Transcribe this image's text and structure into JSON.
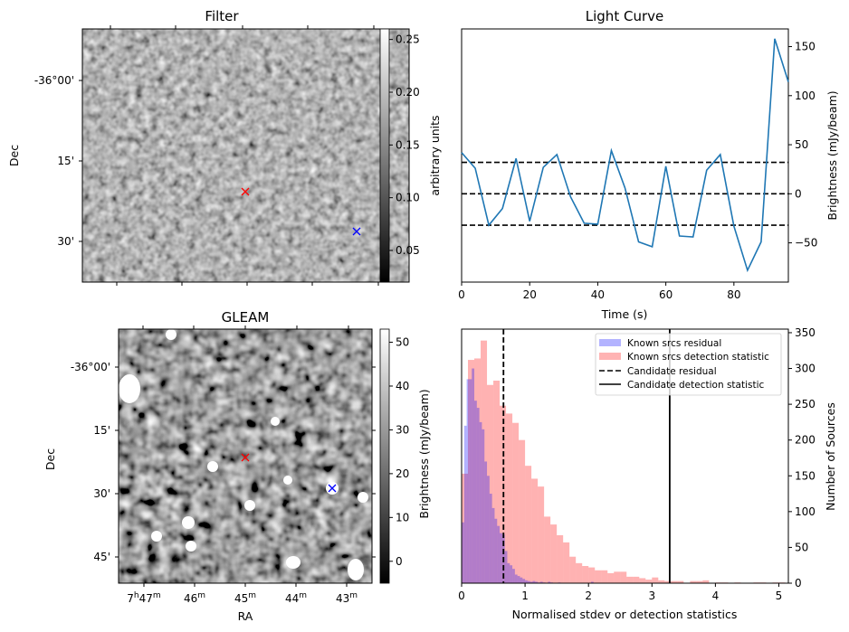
{
  "figure": {
    "colors": {
      "line": "#1f77b4",
      "red_cross": "#ff0000",
      "blue_cross": "#0000ff",
      "hist_residual": "#b3b3ff",
      "hist_detection": "#ffb3b3",
      "overlap": "#c878b0"
    }
  },
  "chart_data": [
    {
      "type": "heatmap",
      "title": "Filter",
      "xlabel": "",
      "ylabel": "Dec",
      "y_tick_labels": [
        "-36°00'",
        "15'",
        "30'"
      ],
      "colorbar": {
        "label": "arbitrary units",
        "ticks": [
          "0.05",
          "0.10",
          "0.15",
          "0.20",
          "0.25"
        ],
        "range": [
          0.02,
          0.26
        ],
        "colormap": "gray"
      },
      "markers": [
        {
          "name": "candidate",
          "symbol": "x",
          "color": "red",
          "ra": "07h45m00s",
          "dec": "-36°20'"
        },
        {
          "name": "known-source",
          "symbol": "x",
          "color": "blue",
          "ra": "07h43m18s",
          "dec": "-36°29'"
        }
      ]
    },
    {
      "type": "line",
      "title": "Light Curve",
      "xlabel": "Time (s)",
      "ylabel": "Brightness (mJy/beam)",
      "xlim": [
        0,
        96
      ],
      "ylim": [
        -90,
        168
      ],
      "x_ticks": [
        0,
        20,
        40,
        60,
        80
      ],
      "y_ticks": [
        -50,
        0,
        50,
        100,
        150
      ],
      "x_tick_labels": [
        "0",
        "20",
        "40",
        "60",
        "80"
      ],
      "y_tick_labels": [
        "−50",
        "0",
        "50",
        "100",
        "150"
      ],
      "x": [
        0,
        4,
        8,
        12,
        16,
        20,
        24,
        28,
        32,
        36,
        40,
        44,
        48,
        52,
        56,
        60,
        64,
        68,
        72,
        76,
        80,
        84,
        88,
        92,
        96
      ],
      "series": [
        {
          "name": "light curve",
          "values": [
            42,
            26,
            -32,
            -15,
            36,
            -28,
            27,
            40,
            -3,
            -30,
            -31,
            44,
            6,
            -49,
            -54,
            28,
            -43,
            -44,
            24,
            40,
            -33,
            -78,
            -49,
            158,
            114
          ]
        }
      ],
      "hlines": [
        {
          "y": 32,
          "style": "dashed"
        },
        {
          "y": 0,
          "style": "dashed"
        },
        {
          "y": -32,
          "style": "dashed"
        }
      ],
      "grid": false
    },
    {
      "type": "heatmap",
      "title": "GLEAM",
      "xlabel": "RA",
      "ylabel": "Dec",
      "x_tick_labels": [
        {
          "h": "7",
          "hs": "h",
          "m": "47",
          "ms": "m"
        },
        {
          "h": "",
          "hs": "",
          "m": "46",
          "ms": "m"
        },
        {
          "h": "",
          "hs": "",
          "m": "45",
          "ms": "m"
        },
        {
          "h": "",
          "hs": "",
          "m": "44",
          "ms": "m"
        },
        {
          "h": "",
          "hs": "",
          "m": "43",
          "ms": "m"
        }
      ],
      "y_tick_labels": [
        "-36°00'",
        "15'",
        "30'",
        "45'"
      ],
      "colorbar": {
        "label": "Brightness (mJy/beam)",
        "ticks": [
          "0",
          "10",
          "20",
          "30",
          "40",
          "50"
        ],
        "range": [
          -5,
          53
        ],
        "colormap": "gray"
      },
      "markers": [
        {
          "name": "candidate",
          "symbol": "x",
          "color": "red",
          "ra": "07h45m00s",
          "dec": "-36°20'"
        },
        {
          "name": "known-source",
          "symbol": "x",
          "color": "blue",
          "ra": "07h43m18s",
          "dec": "-36°29'"
        }
      ]
    },
    {
      "type": "bar",
      "subtype": "histogram",
      "title": "",
      "xlabel": "Normalised stdev or detection statistics",
      "ylabel": "Number of Sources",
      "xlim": [
        0,
        5.15
      ],
      "ylim": [
        0,
        355
      ],
      "x_ticks": [
        0,
        1,
        2,
        3,
        4,
        5
      ],
      "y_ticks": [
        0,
        50,
        100,
        150,
        200,
        250,
        300,
        350
      ],
      "x_tick_labels": [
        "0",
        "1",
        "2",
        "3",
        "4",
        "5"
      ],
      "y_tick_labels": [
        "0",
        "50",
        "100",
        "150",
        "200",
        "250",
        "300",
        "350"
      ],
      "series": [
        {
          "name": "Known srcs residual",
          "bin_width": 0.04,
          "bin_start": 0.0,
          "values": [
            85,
            220,
            285,
            285,
            300,
            255,
            245,
            225,
            215,
            170,
            150,
            125,
            105,
            90,
            80,
            70,
            68,
            45,
            28,
            25,
            20,
            12,
            10,
            8,
            6,
            4,
            3,
            2,
            3,
            2,
            1,
            2,
            1,
            0,
            2,
            1,
            0,
            0,
            1,
            0,
            0,
            0,
            0,
            0,
            0,
            0,
            0,
            0,
            0,
            0,
            0,
            2,
            0
          ]
        },
        {
          "name": "Known srcs detection statistic",
          "bin_width": 0.1,
          "bin_start": 0.0,
          "values": [
            153,
            312,
            314,
            339,
            277,
            283,
            248,
            237,
            224,
            200,
            164,
            146,
            135,
            93,
            82,
            67,
            57,
            37,
            28,
            24,
            22,
            18,
            18,
            14,
            16,
            16,
            9,
            9,
            7,
            5,
            8,
            4,
            3,
            3,
            3,
            0,
            3,
            3,
            4,
            0,
            1,
            1,
            0,
            1,
            0,
            0,
            1,
            1,
            0,
            1,
            1
          ]
        }
      ],
      "vlines": [
        {
          "name": "Candidate residual",
          "x": 0.66,
          "style": "dashed"
        },
        {
          "name": "Candidate detection statistic",
          "x": 3.28,
          "style": "solid"
        }
      ],
      "legend": {
        "position": "top-right",
        "entries": [
          {
            "label": "Known srcs residual",
            "kind": "patch",
            "color": "#b3b3ff"
          },
          {
            "label": "Known srcs detection statistic",
            "kind": "patch",
            "color": "#ffb3b3"
          },
          {
            "label": "Candidate residual",
            "kind": "dashed"
          },
          {
            "label": "Candidate detection statistic",
            "kind": "solid"
          }
        ]
      },
      "grid": false
    }
  ]
}
